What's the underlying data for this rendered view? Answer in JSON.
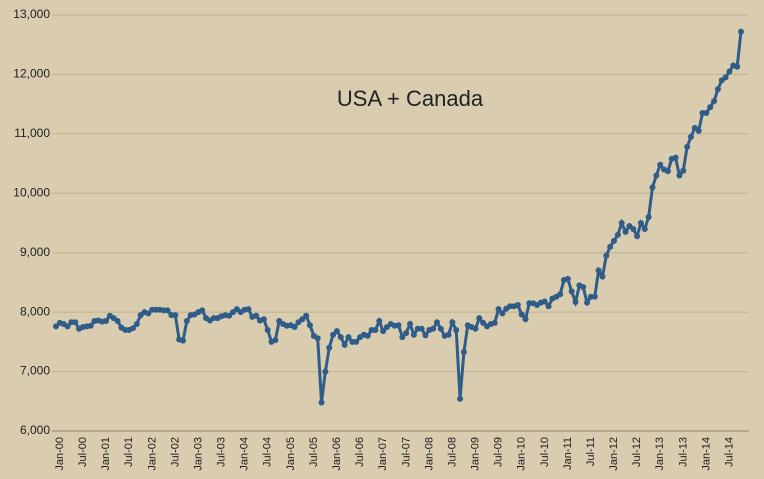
{
  "chart_data": {
    "type": "line",
    "title": "USA + Canada",
    "categories": [
      "Jan-00",
      null,
      null,
      null,
      null,
      null,
      "Jul-00",
      null,
      null,
      null,
      null,
      null,
      "Jan-01",
      null,
      null,
      null,
      null,
      null,
      "Jul-01",
      null,
      null,
      null,
      null,
      null,
      "Jan-02",
      null,
      null,
      null,
      null,
      null,
      "Jul-02",
      null,
      null,
      null,
      null,
      null,
      "Jan-03",
      null,
      null,
      null,
      null,
      null,
      "Jul-03",
      null,
      null,
      null,
      null,
      null,
      "Jan-04",
      null,
      null,
      null,
      null,
      null,
      "Jul-04",
      null,
      null,
      null,
      null,
      null,
      "Jan-05",
      null,
      null,
      null,
      null,
      null,
      "Jul-05",
      null,
      null,
      null,
      null,
      null,
      "Jan-06",
      null,
      null,
      null,
      null,
      null,
      "Jul-06",
      null,
      null,
      null,
      null,
      null,
      "Jan-07",
      null,
      null,
      null,
      null,
      null,
      "Jul-07",
      null,
      null,
      null,
      null,
      null,
      "Jan-08",
      null,
      null,
      null,
      null,
      null,
      "Jul-08",
      null,
      null,
      null,
      null,
      null,
      "Jan-09",
      null,
      null,
      null,
      null,
      null,
      "Jul-09",
      null,
      null,
      null,
      null,
      null,
      "Jan-10",
      null,
      null,
      null,
      null,
      null,
      "Jul-10",
      null,
      null,
      null,
      null,
      null,
      "Jan-11",
      null,
      null,
      null,
      null,
      null,
      "Jul-11",
      null,
      null,
      null,
      null,
      null,
      "Jan-12",
      null,
      null,
      null,
      null,
      null,
      "Jul-12",
      null,
      null,
      null,
      null,
      null,
      "Jan-13",
      null,
      null,
      null,
      null,
      null,
      "Jul-13",
      null,
      null,
      null,
      null,
      null,
      "Jan-14",
      null,
      null,
      null,
      null,
      null,
      "Jul-14",
      null,
      null,
      null,
      null
    ],
    "values": [
      7760,
      7820,
      7800,
      7760,
      7830,
      7830,
      7720,
      7750,
      7760,
      7770,
      7850,
      7860,
      7840,
      7850,
      7940,
      7900,
      7850,
      7740,
      7700,
      7700,
      7730,
      7800,
      7950,
      8000,
      7980,
      8040,
      8040,
      8040,
      8030,
      8030,
      7950,
      7950,
      7540,
      7520,
      7850,
      7950,
      7960,
      8000,
      8030,
      7900,
      7860,
      7900,
      7900,
      7930,
      7950,
      7940,
      8000,
      8050,
      8000,
      8040,
      8050,
      7920,
      7940,
      7860,
      7880,
      7700,
      7500,
      7530,
      7850,
      7800,
      7770,
      7780,
      7750,
      7830,
      7880,
      7940,
      7780,
      7600,
      7560,
      6480,
      7000,
      7400,
      7620,
      7680,
      7580,
      7450,
      7580,
      7500,
      7500,
      7580,
      7620,
      7600,
      7700,
      7700,
      7850,
      7680,
      7750,
      7800,
      7770,
      7780,
      7580,
      7650,
      7800,
      7620,
      7720,
      7720,
      7610,
      7700,
      7720,
      7830,
      7720,
      7600,
      7620,
      7830,
      7700,
      6540,
      7330,
      7780,
      7750,
      7720,
      7900,
      7820,
      7760,
      7800,
      7820,
      8050,
      7980,
      8060,
      8100,
      8100,
      8120,
      7960,
      7880,
      8150,
      8150,
      8120,
      8160,
      8180,
      8100,
      8230,
      8260,
      8300,
      8540,
      8560,
      8350,
      8170,
      8450,
      8420,
      8160,
      8260,
      8260,
      8700,
      8600,
      8950,
      9100,
      9200,
      9300,
      9500,
      9350,
      9450,
      9400,
      9280,
      9500,
      9400,
      9600,
      10100,
      10300,
      10480,
      10400,
      10370,
      10580,
      10600,
      10300,
      10380,
      10780,
      10950,
      11100,
      11050,
      11350,
      11350,
      11450,
      11550,
      11750,
      11900,
      11950,
      12050,
      12150,
      12130,
      12720
    ],
    "color": "#2f5c88",
    "ylim": [
      6000,
      13000
    ],
    "yticks": [
      {
        "value": 6000,
        "label": "6,000"
      },
      {
        "value": 7000,
        "label": "7,000"
      },
      {
        "value": 8000,
        "label": "8,000"
      },
      {
        "value": 9000,
        "label": "9,000"
      },
      {
        "value": 10000,
        "label": "10,000"
      },
      {
        "value": 11000,
        "label": "11,000"
      },
      {
        "value": 12000,
        "label": "12,000"
      },
      {
        "value": 13000,
        "label": "13,000"
      }
    ],
    "grid": true
  }
}
